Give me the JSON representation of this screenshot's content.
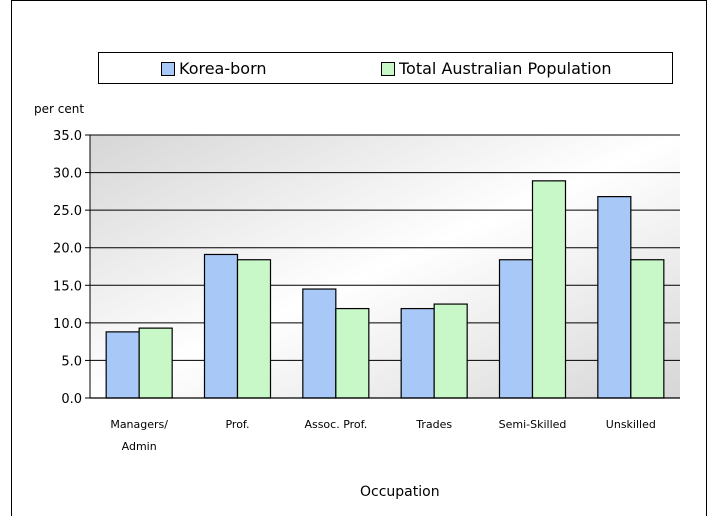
{
  "chart_data": {
    "type": "bar",
    "title": "",
    "xlabel": "Occupation",
    "ylabel": "per cent",
    "ylim": [
      0,
      35
    ],
    "yticks": [
      "0.0",
      "5.0",
      "10.0",
      "15.0",
      "20.0",
      "25.0",
      "30.0",
      "35.0"
    ],
    "categories": [
      [
        "Managers/",
        "Admin"
      ],
      [
        "Prof."
      ],
      [
        "Assoc. Prof."
      ],
      [
        "Trades"
      ],
      [
        "Semi-Skilled"
      ],
      [
        "Unskilled"
      ]
    ],
    "series": [
      {
        "name": "Korea-born",
        "color": "#a8c8f8",
        "values": [
          8.8,
          19.1,
          14.5,
          11.9,
          18.4,
          26.8
        ]
      },
      {
        "name": "Total Australian Population",
        "color": "#c8f8c8",
        "values": [
          9.3,
          18.4,
          11.9,
          12.5,
          28.9,
          18.4
        ]
      }
    ],
    "legend": "top",
    "grid": true
  }
}
